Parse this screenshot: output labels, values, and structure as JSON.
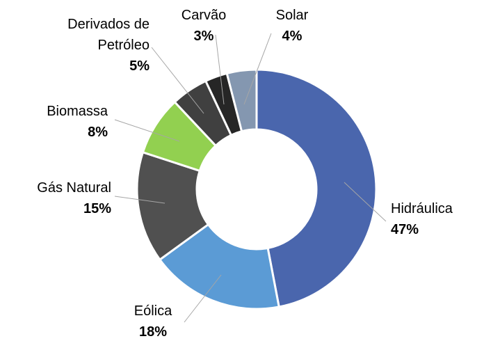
{
  "chart_data": {
    "type": "donut",
    "categories": [
      "Hidráulica",
      "Eólica",
      "Gás Natural",
      "Biomassa",
      "Derivados de Petróleo",
      "Carvão",
      "Solar"
    ],
    "values": [
      47,
      18,
      15,
      8,
      5,
      3,
      4
    ],
    "value_labels": [
      "47%",
      "18%",
      "15%",
      "8%",
      "5%",
      "3%",
      "4%"
    ],
    "colors": [
      "#4a66ad",
      "#5b9bd5",
      "#505050",
      "#92d050",
      "#404040",
      "#262626",
      "#8497b0"
    ]
  }
}
